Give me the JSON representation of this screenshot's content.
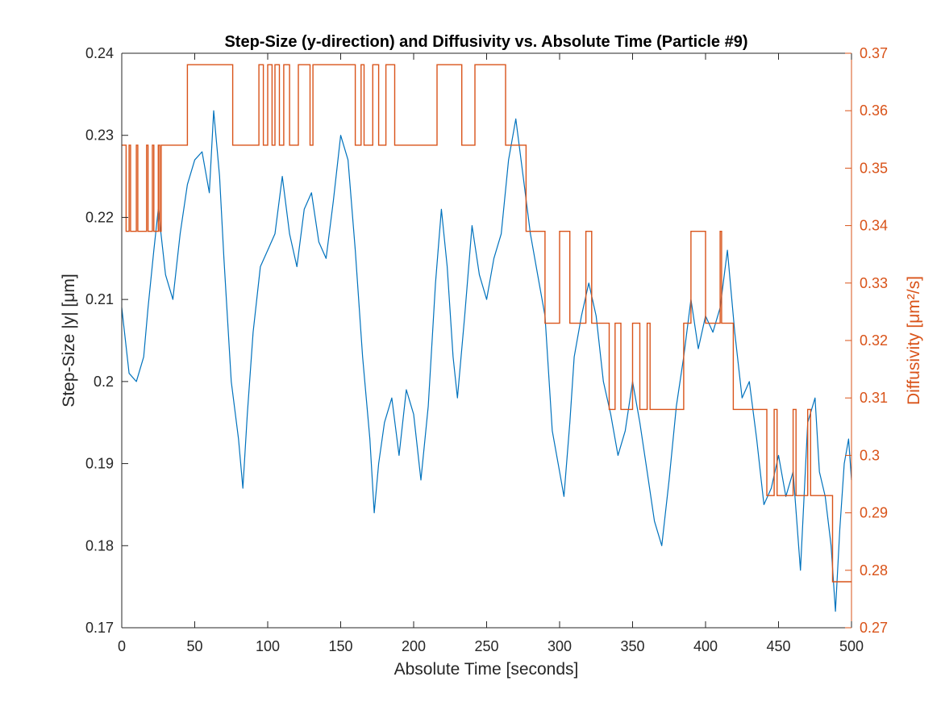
{
  "chart_data": {
    "type": "line",
    "title": "Step-Size (y-direction) and Diffusivity vs. Absolute Time (Particle #9)",
    "xlabel": "Absolute Time [seconds]",
    "ylabel_left": "Step-Size |y| [μm]",
    "ylabel_right": "Diffusivity [μm²/s]",
    "xlim": [
      0,
      500
    ],
    "ylim_left": [
      0.17,
      0.24
    ],
    "ylim_right": [
      0.27,
      0.37
    ],
    "x_ticks": [
      "0",
      "50",
      "100",
      "150",
      "200",
      "250",
      "300",
      "350",
      "400",
      "450",
      "500"
    ],
    "y_left_ticks": [
      "0.17",
      "0.18",
      "0.19",
      "0.2",
      "0.21",
      "0.22",
      "0.23",
      "0.24"
    ],
    "y_right_ticks": [
      "0.27",
      "0.28",
      "0.29",
      "0.3",
      "0.31",
      "0.32",
      "0.33",
      "0.34",
      "0.35",
      "0.36",
      "0.37"
    ],
    "grid": false,
    "colors": {
      "step_size": "#0072BD",
      "diffusivity": "#D95319",
      "axes": "#262626"
    },
    "series": [
      {
        "axis": "left",
        "points": [
          [
            0,
            0.209
          ],
          [
            5,
            0.201
          ],
          [
            10,
            0.2
          ],
          [
            15,
            0.203
          ],
          [
            18,
            0.209
          ],
          [
            22,
            0.216
          ],
          [
            25,
            0.221
          ],
          [
            30,
            0.213
          ],
          [
            35,
            0.21
          ],
          [
            40,
            0.218
          ],
          [
            45,
            0.224
          ],
          [
            50,
            0.227
          ],
          [
            55,
            0.228
          ],
          [
            60,
            0.223
          ],
          [
            63,
            0.233
          ],
          [
            67,
            0.225
          ],
          [
            70,
            0.215
          ],
          [
            75,
            0.2
          ],
          [
            80,
            0.193
          ],
          [
            83,
            0.187
          ],
          [
            86,
            0.196
          ],
          [
            90,
            0.206
          ],
          [
            95,
            0.214
          ],
          [
            100,
            0.216
          ],
          [
            105,
            0.218
          ],
          [
            110,
            0.225
          ],
          [
            115,
            0.218
          ],
          [
            120,
            0.214
          ],
          [
            125,
            0.221
          ],
          [
            130,
            0.223
          ],
          [
            135,
            0.217
          ],
          [
            140,
            0.215
          ],
          [
            145,
            0.222
          ],
          [
            150,
            0.23
          ],
          [
            155,
            0.227
          ],
          [
            160,
            0.216
          ],
          [
            165,
            0.203
          ],
          [
            170,
            0.193
          ],
          [
            173,
            0.184
          ],
          [
            176,
            0.19
          ],
          [
            180,
            0.195
          ],
          [
            185,
            0.198
          ],
          [
            190,
            0.191
          ],
          [
            195,
            0.199
          ],
          [
            200,
            0.196
          ],
          [
            205,
            0.188
          ],
          [
            210,
            0.197
          ],
          [
            215,
            0.212
          ],
          [
            219,
            0.221
          ],
          [
            223,
            0.214
          ],
          [
            227,
            0.203
          ],
          [
            230,
            0.198
          ],
          [
            235,
            0.208
          ],
          [
            240,
            0.219
          ],
          [
            245,
            0.213
          ],
          [
            250,
            0.21
          ],
          [
            255,
            0.215
          ],
          [
            260,
            0.218
          ],
          [
            265,
            0.227
          ],
          [
            270,
            0.232
          ],
          [
            275,
            0.225
          ],
          [
            280,
            0.218
          ],
          [
            285,
            0.213
          ],
          [
            290,
            0.208
          ],
          [
            295,
            0.194
          ],
          [
            300,
            0.189
          ],
          [
            303,
            0.186
          ],
          [
            307,
            0.195
          ],
          [
            310,
            0.203
          ],
          [
            315,
            0.208
          ],
          [
            320,
            0.212
          ],
          [
            325,
            0.208
          ],
          [
            330,
            0.2
          ],
          [
            335,
            0.196
          ],
          [
            340,
            0.191
          ],
          [
            345,
            0.194
          ],
          [
            350,
            0.2
          ],
          [
            355,
            0.195
          ],
          [
            360,
            0.189
          ],
          [
            365,
            0.183
          ],
          [
            370,
            0.18
          ],
          [
            375,
            0.188
          ],
          [
            380,
            0.197
          ],
          [
            385,
            0.203
          ],
          [
            390,
            0.21
          ],
          [
            395,
            0.204
          ],
          [
            400,
            0.208
          ],
          [
            405,
            0.206
          ],
          [
            410,
            0.209
          ],
          [
            415,
            0.216
          ],
          [
            420,
            0.206
          ],
          [
            425,
            0.198
          ],
          [
            430,
            0.2
          ],
          [
            435,
            0.193
          ],
          [
            440,
            0.185
          ],
          [
            445,
            0.187
          ],
          [
            450,
            0.191
          ],
          [
            455,
            0.186
          ],
          [
            460,
            0.189
          ],
          [
            465,
            0.177
          ],
          [
            470,
            0.195
          ],
          [
            475,
            0.198
          ],
          [
            478,
            0.189
          ],
          [
            482,
            0.186
          ],
          [
            486,
            0.18
          ],
          [
            489,
            0.172
          ],
          [
            492,
            0.182
          ],
          [
            495,
            0.19
          ],
          [
            498,
            0.193
          ],
          [
            500,
            0.188
          ]
        ]
      },
      {
        "axis": "right",
        "points": [
          [
            0,
            0.354
          ],
          [
            3,
            0.354
          ],
          [
            3,
            0.339
          ],
          [
            5,
            0.339
          ],
          [
            5,
            0.354
          ],
          [
            6,
            0.354
          ],
          [
            6,
            0.339
          ],
          [
            10,
            0.339
          ],
          [
            10,
            0.354
          ],
          [
            11,
            0.354
          ],
          [
            11,
            0.339
          ],
          [
            17,
            0.339
          ],
          [
            17,
            0.354
          ],
          [
            18,
            0.354
          ],
          [
            18,
            0.339
          ],
          [
            21,
            0.339
          ],
          [
            21,
            0.354
          ],
          [
            22,
            0.354
          ],
          [
            22,
            0.339
          ],
          [
            25,
            0.339
          ],
          [
            25,
            0.354
          ],
          [
            26,
            0.354
          ],
          [
            26,
            0.339
          ],
          [
            27,
            0.339
          ],
          [
            27,
            0.354
          ],
          [
            45,
            0.354
          ],
          [
            45,
            0.368
          ],
          [
            76,
            0.368
          ],
          [
            76,
            0.354
          ],
          [
            94,
            0.354
          ],
          [
            94,
            0.368
          ],
          [
            97,
            0.368
          ],
          [
            97,
            0.354
          ],
          [
            100,
            0.354
          ],
          [
            100,
            0.368
          ],
          [
            103,
            0.368
          ],
          [
            103,
            0.354
          ],
          [
            105,
            0.354
          ],
          [
            105,
            0.368
          ],
          [
            108,
            0.368
          ],
          [
            108,
            0.354
          ],
          [
            111,
            0.354
          ],
          [
            111,
            0.368
          ],
          [
            115,
            0.368
          ],
          [
            115,
            0.354
          ],
          [
            121,
            0.354
          ],
          [
            121,
            0.368
          ],
          [
            129,
            0.368
          ],
          [
            129,
            0.354
          ],
          [
            131,
            0.354
          ],
          [
            131,
            0.368
          ],
          [
            160,
            0.368
          ],
          [
            160,
            0.354
          ],
          [
            164,
            0.354
          ],
          [
            164,
            0.368
          ],
          [
            166,
            0.368
          ],
          [
            166,
            0.354
          ],
          [
            172,
            0.354
          ],
          [
            172,
            0.368
          ],
          [
            176,
            0.368
          ],
          [
            176,
            0.354
          ],
          [
            181,
            0.354
          ],
          [
            181,
            0.368
          ],
          [
            187,
            0.368
          ],
          [
            187,
            0.354
          ],
          [
            216,
            0.354
          ],
          [
            216,
            0.368
          ],
          [
            233,
            0.368
          ],
          [
            233,
            0.354
          ],
          [
            242,
            0.354
          ],
          [
            242,
            0.368
          ],
          [
            263,
            0.368
          ],
          [
            263,
            0.354
          ],
          [
            277,
            0.354
          ],
          [
            277,
            0.339
          ],
          [
            290,
            0.339
          ],
          [
            290,
            0.323
          ],
          [
            300,
            0.323
          ],
          [
            300,
            0.339
          ],
          [
            307,
            0.339
          ],
          [
            307,
            0.323
          ],
          [
            318,
            0.323
          ],
          [
            318,
            0.339
          ],
          [
            322,
            0.339
          ],
          [
            322,
            0.323
          ],
          [
            334,
            0.323
          ],
          [
            334,
            0.308
          ],
          [
            338,
            0.308
          ],
          [
            338,
            0.323
          ],
          [
            342,
            0.323
          ],
          [
            342,
            0.308
          ],
          [
            350,
            0.308
          ],
          [
            350,
            0.323
          ],
          [
            355,
            0.323
          ],
          [
            355,
            0.308
          ],
          [
            360,
            0.308
          ],
          [
            360,
            0.323
          ],
          [
            362,
            0.323
          ],
          [
            362,
            0.308
          ],
          [
            385,
            0.308
          ],
          [
            385,
            0.323
          ],
          [
            390,
            0.323
          ],
          [
            390,
            0.339
          ],
          [
            400,
            0.339
          ],
          [
            400,
            0.323
          ],
          [
            410,
            0.323
          ],
          [
            410,
            0.339
          ],
          [
            411,
            0.339
          ],
          [
            411,
            0.323
          ],
          [
            419,
            0.323
          ],
          [
            419,
            0.308
          ],
          [
            442,
            0.308
          ],
          [
            442,
            0.293
          ],
          [
            447,
            0.293
          ],
          [
            447,
            0.308
          ],
          [
            449,
            0.308
          ],
          [
            449,
            0.293
          ],
          [
            460,
            0.293
          ],
          [
            460,
            0.308
          ],
          [
            462,
            0.308
          ],
          [
            462,
            0.293
          ],
          [
            470,
            0.293
          ],
          [
            470,
            0.308
          ],
          [
            472,
            0.308
          ],
          [
            472,
            0.293
          ],
          [
            487,
            0.293
          ],
          [
            487,
            0.278
          ],
          [
            500,
            0.278
          ]
        ]
      }
    ]
  }
}
